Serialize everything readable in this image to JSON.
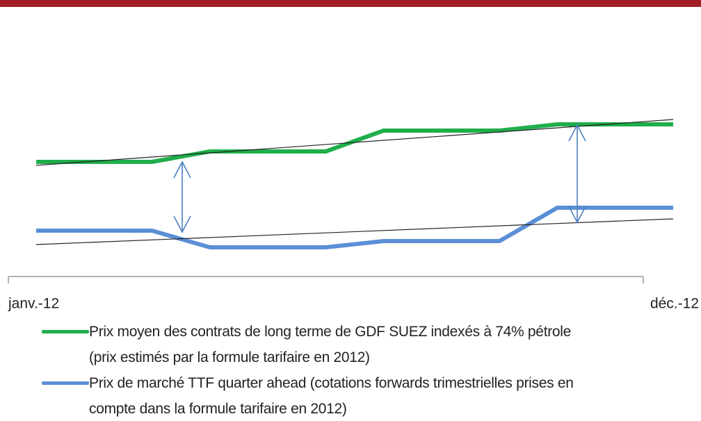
{
  "chart_data": {
    "type": "line",
    "categories": [
      "janv.-12",
      null,
      null,
      null,
      null,
      null,
      null,
      null,
      null,
      null,
      null,
      "déc.-12"
    ],
    "series": [
      {
        "name": "Prix moyen des contrats de long terme de GDF SUEZ indexés à 74% pétrole\n(prix estimés par la formule tarifaire en 2012)",
        "color": "#1fae4b",
        "values": [
          55,
          55,
          55,
          60,
          60,
          60,
          70,
          70,
          70,
          73,
          73,
          73
        ]
      },
      {
        "name": "Prix de marché TTF quarter ahead (cotations forwards trimestrielles prises en\ncompte dans la formule tarifaire en 2012)",
        "color": "#5b8fd6",
        "values": [
          22,
          22,
          22,
          14,
          14,
          14,
          17,
          17,
          17,
          33,
          33,
          33
        ]
      }
    ],
    "ylim": [
      0,
      100
    ]
  }
}
